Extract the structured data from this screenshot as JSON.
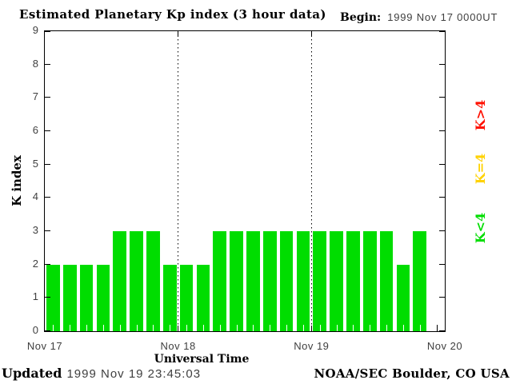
{
  "header": {
    "title": "Estimated Planetary Kp index (3 hour data)",
    "begin_label": "Begin:",
    "begin_value": "1999 Nov 17 0000UT"
  },
  "axes": {
    "y_title": "K index",
    "x_title": "Universal Time"
  },
  "legend": [
    {
      "label": "K>4",
      "color": "#ff1000"
    },
    {
      "label": "K=4",
      "color": "#ffd200"
    },
    {
      "label": "K<4",
      "color": "#00dd00"
    }
  ],
  "footer": {
    "updated_label": "Updated",
    "updated_value": "1999 Nov 19 23:45:03",
    "credit": "NOAA/SEC Boulder, CO USA"
  },
  "chart_data": {
    "type": "bar",
    "title": "Estimated Planetary Kp index (3 hour data)",
    "xlabel": "Universal Time",
    "ylabel": "K index",
    "ylim": [
      0,
      9
    ],
    "y_ticks": [
      0,
      1,
      2,
      3,
      4,
      5,
      6,
      7,
      8,
      9
    ],
    "x_tick_labels": [
      "Nov 17",
      "Nov 18",
      "Nov 19",
      "Nov 20"
    ],
    "begin": "1999 Nov 17 0000UT",
    "hours_per_bar": 3,
    "bar_color": "#00dd00",
    "grid": "dotted vertical lines at day boundaries",
    "legend_position": "right margin, rotated",
    "values": [
      2,
      2,
      2,
      2,
      3,
      3,
      3,
      2,
      2,
      2,
      3,
      3,
      3,
      3,
      3,
      3,
      3,
      3,
      3,
      3,
      3,
      2,
      3
    ],
    "series_note": "23 three-hour Kp values starting 1999 Nov 17 0000UT; Nov 17: 2,2,2,2,3,3,3,2 | Nov 18: 2,2,3,3,3,3,3,3 | Nov 19: 3,3,3,3,3,2,3"
  }
}
